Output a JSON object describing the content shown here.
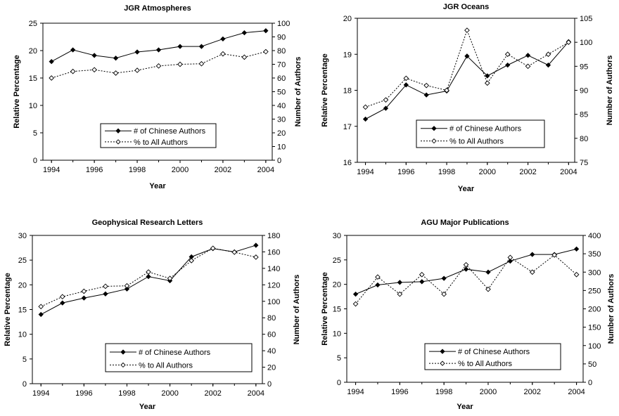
{
  "chart_data": [
    {
      "type": "line",
      "title": "JGR Atmospheres",
      "xlabel": "Year",
      "ylabel": "Relative Percentage",
      "y2label": "Number of Authors",
      "x": [
        1994,
        1995,
        1996,
        1997,
        1998,
        1999,
        2000,
        2001,
        2002,
        2003,
        2004
      ],
      "xticks": [
        "1994",
        "1996",
        "1998",
        "2000",
        "2002",
        "2004"
      ],
      "xlim": [
        1993.6,
        2004.3
      ],
      "ylim": [
        0,
        25
      ],
      "yticks": [
        "0",
        "5",
        "10",
        "15",
        "20",
        "25"
      ],
      "y2lim": [
        0,
        100
      ],
      "y2ticks": [
        "0",
        "10",
        "20",
        "30",
        "40",
        "50",
        "60",
        "70",
        "80",
        "90",
        "100"
      ],
      "legend_position": "bottom-right",
      "series": [
        {
          "name": "# of Chinese Authors",
          "axis": "right",
          "style": "solid",
          "marker": "filled-diamond",
          "values": [
            72,
            80.5,
            76.5,
            74.5,
            79,
            80.5,
            83,
            83,
            88.5,
            93,
            94.5
          ]
        },
        {
          "name": "% to All Authors",
          "axis": "left",
          "style": "dotted",
          "marker": "open-diamond",
          "values": [
            15,
            16.2,
            16.5,
            15.9,
            16.4,
            17.2,
            17.5,
            17.6,
            19.4,
            18.8,
            19.8
          ]
        }
      ]
    },
    {
      "type": "line",
      "title": "JGR Oceans",
      "xlabel": "Year",
      "ylabel": "Relative Percentage",
      "y2label": "Number of Authors",
      "x": [
        1994,
        1995,
        1996,
        1997,
        1998,
        1999,
        2000,
        2001,
        2002,
        2003,
        2004
      ],
      "xticks": [
        "1994",
        "1996",
        "1998",
        "2000",
        "2002",
        "2004"
      ],
      "xlim": [
        1993.6,
        2004.3
      ],
      "ylim": [
        16,
        20
      ],
      "yticks": [
        "16",
        "17",
        "18",
        "19",
        "20"
      ],
      "y2lim": [
        75,
        105
      ],
      "y2ticks": [
        "75",
        "80",
        "85",
        "90",
        "95",
        "100",
        "105"
      ],
      "legend_position": "bottom-right",
      "series": [
        {
          "name": "# of Chinese Authors",
          "axis": "left",
          "style": "solid",
          "marker": "filled-diamond",
          "values": [
            17.2,
            17.5,
            18.15,
            17.87,
            17.98,
            18.95,
            18.4,
            18.7,
            18.97,
            18.7,
            19.35
          ]
        },
        {
          "name": "% to All Authors",
          "axis": "right",
          "style": "dotted",
          "marker": "open-diamond",
          "values": [
            86.5,
            88,
            92.5,
            91,
            90,
            102.5,
            91.5,
            97.5,
            95,
            97.5,
            100
          ]
        }
      ]
    },
    {
      "type": "line",
      "title": "Geophysical Research Letters",
      "xlabel": "Year",
      "ylabel": "Relative Percentage",
      "y2label": "Number of Authors",
      "x": [
        1994,
        1995,
        1996,
        1997,
        1998,
        1999,
        2000,
        2001,
        2002,
        2003,
        2004
      ],
      "xticks": [
        "1994",
        "1996",
        "1998",
        "2000",
        "2002",
        "2004"
      ],
      "xlim": [
        1993.6,
        2004.3
      ],
      "ylim": [
        0,
        30
      ],
      "yticks": [
        "0",
        "5",
        "10",
        "15",
        "20",
        "25",
        "30"
      ],
      "y2lim": [
        0,
        180
      ],
      "y2ticks": [
        "0",
        "20",
        "40",
        "60",
        "80",
        "100",
        "120",
        "140",
        "160",
        "180"
      ],
      "legend_position": "bottom-right",
      "series": [
        {
          "name": "# of Chinese Authors",
          "axis": "right",
          "style": "solid",
          "marker": "filled-diamond",
          "values": [
            84,
            98,
            104,
            109,
            115,
            130,
            125,
            154,
            164,
            160,
            168
          ]
        },
        {
          "name": "% to All Authors",
          "axis": "left",
          "style": "dotted",
          "marker": "open-diamond",
          "values": [
            15.6,
            17.6,
            18.7,
            19.7,
            19.8,
            22.6,
            21.3,
            24.9,
            27.4,
            26.6,
            25.6
          ]
        }
      ]
    },
    {
      "type": "line",
      "title": "AGU Major Publications",
      "xlabel": "Year",
      "ylabel": "Relative Percentage",
      "y2label": "Number of Authors",
      "x": [
        1994,
        1995,
        1996,
        1997,
        1998,
        1999,
        2000,
        2001,
        2002,
        2003,
        2004
      ],
      "xticks": [
        "1994",
        "1996",
        "1998",
        "2000",
        "2002",
        "2004"
      ],
      "xlim": [
        1993.6,
        2004.3
      ],
      "ylim": [
        0,
        30
      ],
      "yticks": [
        "0",
        "5",
        "10",
        "15",
        "20",
        "25",
        "30"
      ],
      "y2lim": [
        0,
        400
      ],
      "y2ticks": [
        "0",
        "50",
        "100",
        "150",
        "200",
        "250",
        "300",
        "350",
        "400"
      ],
      "legend_position": "bottom-right",
      "series": [
        {
          "name": "# of Chinese Authors",
          "axis": "right",
          "style": "solid",
          "marker": "filled-diamond",
          "values": [
            240,
            265,
            272,
            274,
            283,
            308,
            300,
            330,
            348,
            348,
            363
          ]
        },
        {
          "name": "% to All Authors",
          "axis": "left",
          "style": "dotted",
          "marker": "open-diamond",
          "values": [
            16,
            21.5,
            18,
            22,
            18,
            24,
            19,
            25.5,
            22.5,
            26,
            22
          ]
        }
      ]
    }
  ]
}
